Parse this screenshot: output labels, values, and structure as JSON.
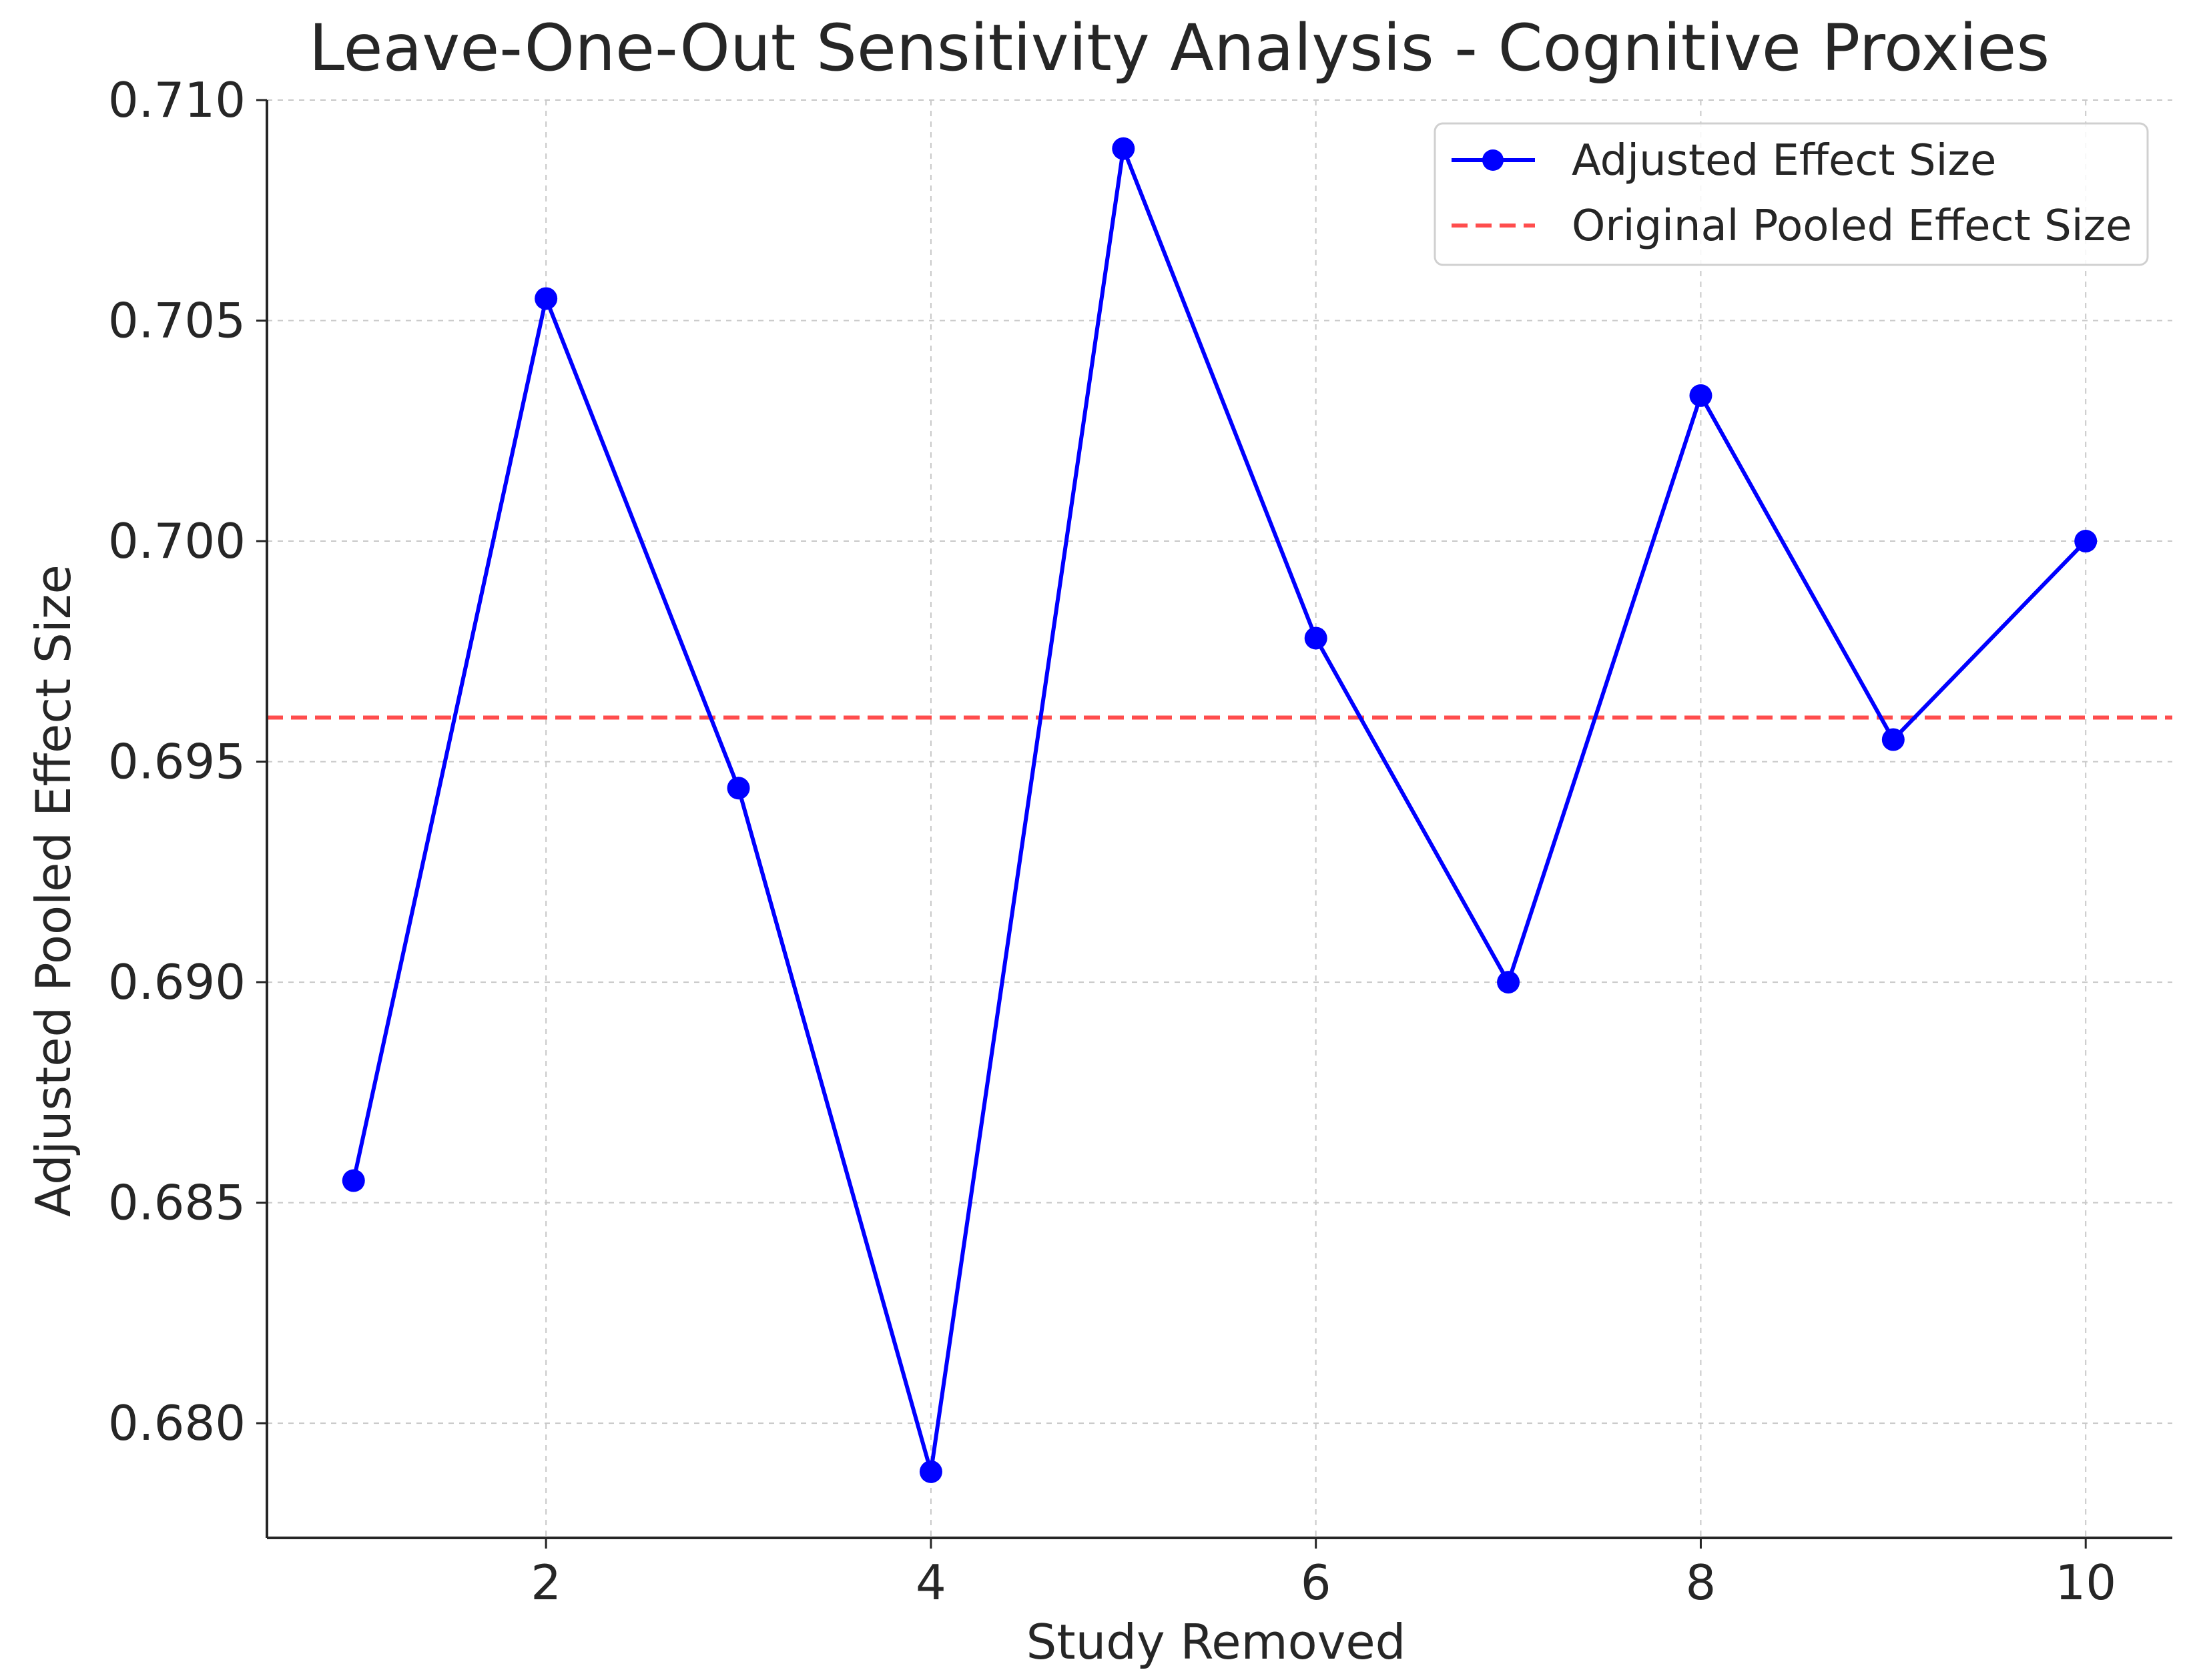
{
  "chart_data": {
    "type": "line",
    "title": "Leave-One-Out Sensitivity Analysis - Cognitive Proxies",
    "xlabel": "Study Removed",
    "ylabel": "Adjusted Pooled Effect Size",
    "x": [
      1,
      2,
      3,
      4,
      5,
      6,
      7,
      8,
      9,
      10
    ],
    "series": [
      {
        "name": "Adjusted Effect Size",
        "values": [
          0.6855,
          0.7055,
          0.6944,
          0.6789,
          0.7089,
          0.6978,
          0.69,
          0.7033,
          0.6955,
          0.7
        ],
        "color": "#0000ff",
        "marker": "circle",
        "line_style": "solid"
      }
    ],
    "reference_lines": [
      {
        "name": "Original Pooled Effect Size",
        "y": 0.696,
        "color": "#ff4d4d",
        "line_style": "dashed"
      }
    ],
    "xlim": [
      0.55,
      10.45
    ],
    "ylim": [
      0.6774,
      0.71
    ],
    "xticks": [
      2,
      4,
      6,
      8,
      10
    ],
    "xtick_labels": [
      "2",
      "4",
      "6",
      "8",
      "10"
    ],
    "yticks": [
      0.68,
      0.685,
      0.69,
      0.695,
      0.7,
      0.705,
      0.71
    ],
    "ytick_labels": [
      "0.680",
      "0.685",
      "0.690",
      "0.695",
      "0.700",
      "0.705",
      "0.710"
    ],
    "grid": true,
    "legend_position": "upper right"
  }
}
